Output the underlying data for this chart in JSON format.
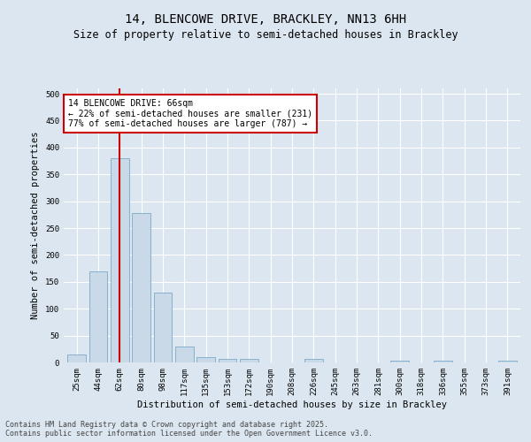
{
  "title_line1": "14, BLENCOWE DRIVE, BRACKLEY, NN13 6HH",
  "title_line2": "Size of property relative to semi-detached houses in Brackley",
  "xlabel": "Distribution of semi-detached houses by size in Brackley",
  "ylabel": "Number of semi-detached properties",
  "categories": [
    "25sqm",
    "44sqm",
    "62sqm",
    "80sqm",
    "98sqm",
    "117sqm",
    "135sqm",
    "153sqm",
    "172sqm",
    "190sqm",
    "208sqm",
    "226sqm",
    "245sqm",
    "263sqm",
    "281sqm",
    "300sqm",
    "318sqm",
    "336sqm",
    "355sqm",
    "373sqm",
    "391sqm"
  ],
  "values": [
    15,
    170,
    380,
    278,
    130,
    30,
    10,
    7,
    7,
    0,
    0,
    7,
    0,
    0,
    0,
    3,
    0,
    3,
    0,
    0,
    3
  ],
  "bar_color": "#c9d9e8",
  "bar_edge_color": "#7aaac8",
  "red_line_index": 2,
  "red_line_color": "#cc0000",
  "annotation_box_color": "#cc0000",
  "annotation_text_line1": "14 BLENCOWE DRIVE: 66sqm",
  "annotation_text_line2": "← 22% of semi-detached houses are smaller (231)",
  "annotation_text_line3": "77% of semi-detached houses are larger (787) →",
  "annotation_fontsize": 7,
  "ylim": [
    0,
    510
  ],
  "yticks": [
    0,
    50,
    100,
    150,
    200,
    250,
    300,
    350,
    400,
    450,
    500
  ],
  "background_color": "#dce6f0",
  "plot_bg_color": "#dce6f0",
  "footer_line1": "Contains HM Land Registry data © Crown copyright and database right 2025.",
  "footer_line2": "Contains public sector information licensed under the Open Government Licence v3.0.",
  "title_fontsize": 10,
  "subtitle_fontsize": 8.5,
  "axis_label_fontsize": 7.5,
  "tick_fontsize": 6.5,
  "footer_fontsize": 6
}
